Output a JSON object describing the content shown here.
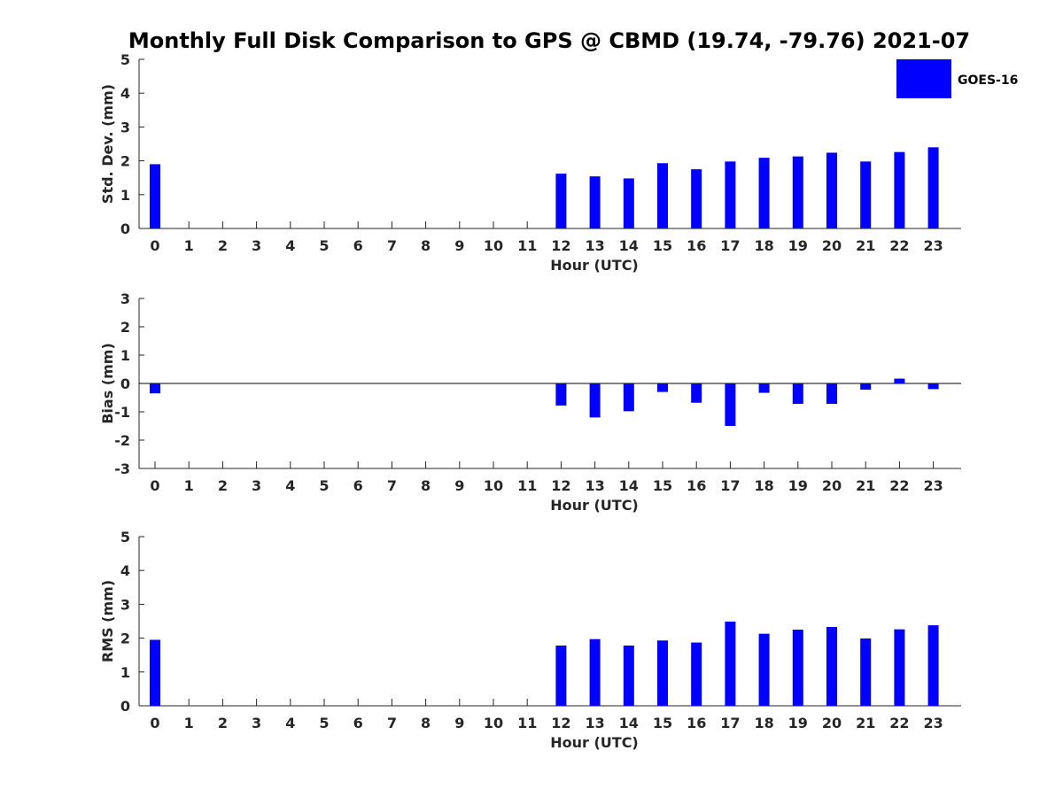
{
  "chart_data": {
    "title": "Monthly Full Disk Comparison to GPS @ CBMD (19.74, -79.76) 2021-07",
    "legend": {
      "label": "GOES-16",
      "color": "#0000ff",
      "placement": "top-right"
    },
    "categories": [
      "0",
      "1",
      "2",
      "3",
      "4",
      "5",
      "6",
      "7",
      "8",
      "9",
      "10",
      "11",
      "12",
      "13",
      "14",
      "15",
      "16",
      "17",
      "18",
      "19",
      "20",
      "21",
      "22",
      "23"
    ],
    "panels": [
      {
        "type": "bar",
        "ylabel": "Std. Dev. (mm)",
        "xlabel": "Hour (UTC)",
        "ylim": [
          0,
          5
        ],
        "yticks": [
          "0",
          "1",
          "2",
          "3",
          "4",
          "5"
        ],
        "series": [
          {
            "name": "GOES-16",
            "color": "#0000ff",
            "values": [
              1.9,
              null,
              null,
              null,
              null,
              null,
              null,
              null,
              null,
              null,
              null,
              null,
              1.62,
              1.54,
              1.48,
              1.93,
              1.75,
              1.98,
              2.09,
              2.13,
              2.24,
              1.98,
              2.26,
              2.4
            ]
          }
        ]
      },
      {
        "type": "bar",
        "ylabel": "Bias (mm)",
        "xlabel": "Hour (UTC)",
        "ylim": [
          -3,
          3
        ],
        "yticks": [
          "-3",
          "-2",
          "-1",
          "0",
          "1",
          "2",
          "3"
        ],
        "zero_line": true,
        "series": [
          {
            "name": "GOES-16",
            "color": "#0000ff",
            "values": [
              -0.35,
              null,
              null,
              null,
              null,
              null,
              null,
              null,
              null,
              null,
              null,
              null,
              -0.78,
              -1.2,
              -0.98,
              -0.3,
              -0.68,
              -1.5,
              -0.33,
              -0.72,
              -0.72,
              -0.22,
              0.17,
              -0.2
            ]
          }
        ]
      },
      {
        "type": "bar",
        "ylabel": "RMS (mm)",
        "xlabel": "Hour (UTC)",
        "ylim": [
          0,
          5
        ],
        "yticks": [
          "0",
          "1",
          "2",
          "3",
          "4",
          "5"
        ],
        "series": [
          {
            "name": "GOES-16",
            "color": "#0000ff",
            "values": [
              1.95,
              null,
              null,
              null,
              null,
              null,
              null,
              null,
              null,
              null,
              null,
              null,
              1.78,
              1.97,
              1.78,
              1.93,
              1.87,
              2.49,
              2.13,
              2.25,
              2.33,
              1.99,
              2.26,
              2.38
            ]
          }
        ]
      }
    ]
  }
}
